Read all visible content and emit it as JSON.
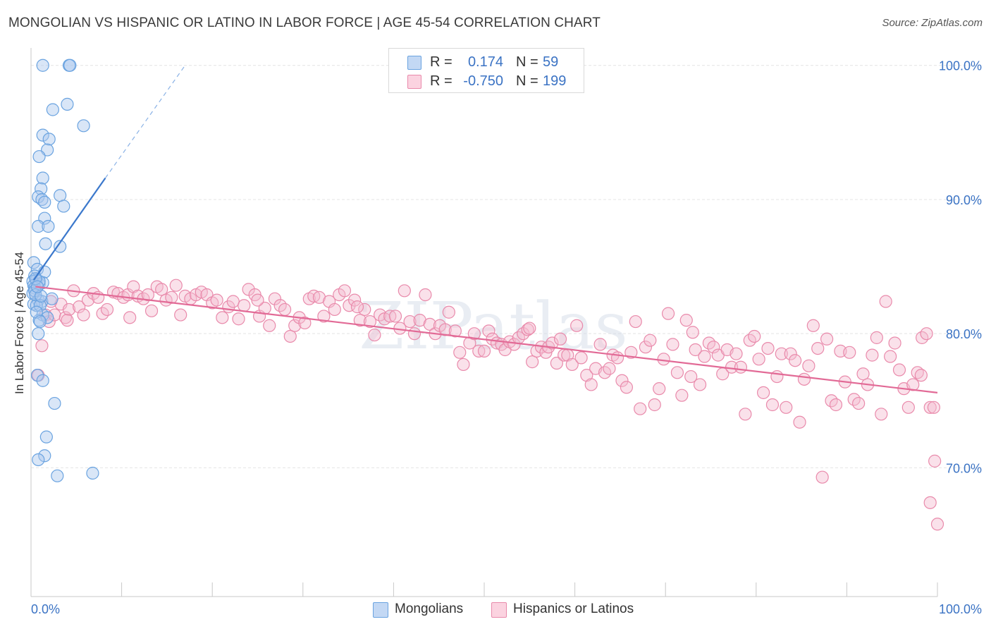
{
  "title": "MONGOLIAN VS HISPANIC OR LATINO IN LABOR FORCE | AGE 45-54 CORRELATION CHART",
  "source": "Source: ZipAtlas.com",
  "watermark": "ZIPatlas",
  "colors": {
    "blue": "#6aa3e0",
    "blue_fill": "#aac8ee",
    "blue_line": "#3b78cc",
    "pink": "#e98aab",
    "pink_fill": "#f5bcd0",
    "pink_line": "#e26a96",
    "tick": "#3b73c4",
    "grid": "#e4e4e4"
  },
  "legend_top": {
    "rows": [
      {
        "r_label": "R =",
        "r_value": "0.174",
        "n_label": "N =",
        "n_value": "59",
        "series": "blue"
      },
      {
        "r_label": "R =",
        "r_value": "-0.750",
        "n_label": "N =",
        "n_value": "199",
        "series": "pink"
      }
    ]
  },
  "legend_bottom": {
    "items": [
      {
        "label": "Mongolians",
        "series": "blue"
      },
      {
        "label": "Hispanics or Latinos",
        "series": "pink"
      }
    ]
  },
  "chart_data": {
    "type": "scatter",
    "ylabel": "In Labor Force | Age 45-54",
    "xlim": [
      0,
      100
    ],
    "ylim": [
      60.4,
      101.3
    ],
    "y_ticks": [
      {
        "value": 100,
        "label": "100.0%"
      },
      {
        "value": 90,
        "label": "90.0%"
      },
      {
        "value": 80,
        "label": "80.0%"
      },
      {
        "value": 70,
        "label": "70.0%"
      }
    ],
    "x_ticks": [
      {
        "value": 0,
        "label": "0.0%"
      },
      {
        "value": 100,
        "label": "100.0%"
      }
    ],
    "x_minor_ticks": [
      0,
      10,
      20,
      30,
      40,
      50,
      60,
      70,
      80,
      90,
      100
    ],
    "grid": true,
    "series": [
      {
        "name": "Mongolians",
        "color": "blue",
        "trend": {
          "x": [
            0.3,
            8.2
          ],
          "y": [
            84.0,
            91.6
          ],
          "dashed_to": [
            17.0,
            100.0
          ]
        },
        "points": [
          [
            1.3,
            100.0
          ],
          [
            4.2,
            100.0
          ],
          [
            4.3,
            100.0
          ],
          [
            4.0,
            97.1
          ],
          [
            2.4,
            96.7
          ],
          [
            5.8,
            95.5
          ],
          [
            1.3,
            94.8
          ],
          [
            2.0,
            94.5
          ],
          [
            1.8,
            93.7
          ],
          [
            0.9,
            93.2
          ],
          [
            1.3,
            91.6
          ],
          [
            1.1,
            90.8
          ],
          [
            0.8,
            90.2
          ],
          [
            3.2,
            90.3
          ],
          [
            1.2,
            90.0
          ],
          [
            1.5,
            89.8
          ],
          [
            3.6,
            89.5
          ],
          [
            1.5,
            88.6
          ],
          [
            0.8,
            88.0
          ],
          [
            1.9,
            88.0
          ],
          [
            1.6,
            86.7
          ],
          [
            3.2,
            86.5
          ],
          [
            0.3,
            85.3
          ],
          [
            0.7,
            84.8
          ],
          [
            1.5,
            84.6
          ],
          [
            0.4,
            84.3
          ],
          [
            0.6,
            84.0
          ],
          [
            0.2,
            83.9
          ],
          [
            0.3,
            83.6
          ],
          [
            0.9,
            83.7
          ],
          [
            1.3,
            83.8
          ],
          [
            0.4,
            83.4
          ],
          [
            0.2,
            83.0
          ],
          [
            0.8,
            82.5
          ],
          [
            1.2,
            82.4
          ],
          [
            2.3,
            82.6
          ],
          [
            0.3,
            82.2
          ],
          [
            0.6,
            82.1
          ],
          [
            1.0,
            82.1
          ],
          [
            1.3,
            81.4
          ],
          [
            1.8,
            81.2
          ],
          [
            0.9,
            81.0
          ],
          [
            0.8,
            80.0
          ],
          [
            0.7,
            76.9
          ],
          [
            1.3,
            76.5
          ],
          [
            2.6,
            74.8
          ],
          [
            1.7,
            72.3
          ],
          [
            1.5,
            70.9
          ],
          [
            0.8,
            70.6
          ],
          [
            2.9,
            69.4
          ],
          [
            6.8,
            69.6
          ],
          [
            0.4,
            83.2
          ],
          [
            0.5,
            82.9
          ],
          [
            0.6,
            81.6
          ],
          [
            0.9,
            83.9
          ],
          [
            1.1,
            82.8
          ],
          [
            0.5,
            84.1
          ],
          [
            1.0,
            80.9
          ],
          [
            0.7,
            83.5
          ]
        ]
      },
      {
        "name": "Hispanics or Latinos",
        "color": "pink",
        "trend": {
          "x": [
            0.5,
            100
          ],
          "y": [
            83.5,
            75.6
          ]
        },
        "points": [
          [
            1.2,
            79.1
          ],
          [
            0.8,
            76.9
          ],
          [
            1.6,
            81.4
          ],
          [
            2.0,
            80.9
          ],
          [
            2.6,
            81.4
          ],
          [
            3.3,
            82.2
          ],
          [
            3.8,
            81.2
          ],
          [
            4.2,
            81.8
          ],
          [
            4.7,
            83.2
          ],
          [
            5.3,
            82.0
          ],
          [
            5.8,
            81.4
          ],
          [
            6.3,
            82.5
          ],
          [
            6.9,
            83.0
          ],
          [
            7.4,
            82.7
          ],
          [
            7.9,
            81.5
          ],
          [
            8.4,
            81.8
          ],
          [
            9.1,
            83.1
          ],
          [
            9.6,
            83.0
          ],
          [
            10.2,
            82.7
          ],
          [
            10.7,
            82.9
          ],
          [
            11.3,
            83.5
          ],
          [
            11.8,
            82.8
          ],
          [
            12.4,
            82.6
          ],
          [
            12.9,
            82.9
          ],
          [
            13.3,
            81.7
          ],
          [
            13.9,
            83.5
          ],
          [
            14.4,
            83.3
          ],
          [
            14.9,
            82.5
          ],
          [
            15.5,
            82.7
          ],
          [
            16.0,
            83.6
          ],
          [
            16.5,
            81.4
          ],
          [
            17.0,
            82.8
          ],
          [
            17.6,
            82.6
          ],
          [
            18.2,
            82.9
          ],
          [
            18.8,
            83.1
          ],
          [
            19.4,
            82.9
          ],
          [
            20.0,
            82.3
          ],
          [
            20.5,
            82.5
          ],
          [
            21.1,
            81.2
          ],
          [
            21.8,
            82.0
          ],
          [
            22.3,
            82.4
          ],
          [
            22.9,
            81.1
          ],
          [
            23.5,
            82.1
          ],
          [
            24.0,
            83.3
          ],
          [
            24.7,
            82.9
          ],
          [
            25.2,
            81.3
          ],
          [
            25.8,
            81.9
          ],
          [
            26.3,
            80.6
          ],
          [
            26.9,
            82.6
          ],
          [
            27.5,
            82.1
          ],
          [
            28.0,
            81.8
          ],
          [
            28.6,
            79.8
          ],
          [
            29.1,
            80.6
          ],
          [
            29.6,
            81.2
          ],
          [
            30.2,
            80.8
          ],
          [
            30.7,
            82.6
          ],
          [
            31.2,
            82.8
          ],
          [
            31.8,
            82.7
          ],
          [
            32.3,
            81.3
          ],
          [
            32.9,
            82.4
          ],
          [
            33.5,
            81.8
          ],
          [
            34.0,
            82.9
          ],
          [
            34.6,
            83.2
          ],
          [
            35.1,
            82.1
          ],
          [
            35.7,
            82.5
          ],
          [
            36.3,
            81.0
          ],
          [
            36.8,
            81.8
          ],
          [
            37.4,
            80.9
          ],
          [
            37.9,
            79.9
          ],
          [
            38.5,
            81.4
          ],
          [
            39.0,
            81.1
          ],
          [
            39.6,
            81.3
          ],
          [
            40.2,
            81.3
          ],
          [
            40.7,
            80.4
          ],
          [
            41.2,
            83.2
          ],
          [
            41.8,
            80.9
          ],
          [
            42.3,
            80.0
          ],
          [
            42.9,
            81.0
          ],
          [
            43.5,
            82.9
          ],
          [
            44.0,
            80.7
          ],
          [
            44.6,
            80.0
          ],
          [
            45.1,
            80.6
          ],
          [
            45.7,
            80.3
          ],
          [
            46.1,
            81.6
          ],
          [
            46.8,
            80.2
          ],
          [
            47.3,
            78.6
          ],
          [
            47.7,
            77.7
          ],
          [
            48.4,
            79.3
          ],
          [
            48.9,
            80.0
          ],
          [
            49.4,
            78.7
          ],
          [
            50.0,
            78.7
          ],
          [
            50.5,
            80.2
          ],
          [
            50.9,
            79.6
          ],
          [
            51.4,
            79.3
          ],
          [
            51.9,
            79.2
          ],
          [
            52.3,
            78.8
          ],
          [
            52.8,
            79.4
          ],
          [
            53.3,
            79.2
          ],
          [
            53.8,
            79.7
          ],
          [
            54.3,
            80.0
          ],
          [
            54.8,
            80.3
          ],
          [
            55.3,
            77.9
          ],
          [
            55.8,
            78.7
          ],
          [
            56.3,
            79.0
          ],
          [
            56.8,
            78.6
          ],
          [
            57.1,
            79.0
          ],
          [
            57.5,
            79.3
          ],
          [
            58.0,
            77.8
          ],
          [
            58.4,
            79.6
          ],
          [
            58.8,
            78.4
          ],
          [
            59.2,
            78.4
          ],
          [
            59.7,
            77.7
          ],
          [
            60.2,
            80.6
          ],
          [
            60.7,
            78.2
          ],
          [
            61.3,
            76.9
          ],
          [
            61.8,
            76.2
          ],
          [
            62.3,
            77.4
          ],
          [
            62.8,
            79.2
          ],
          [
            63.3,
            77.1
          ],
          [
            63.8,
            77.4
          ],
          [
            64.2,
            78.4
          ],
          [
            64.7,
            78.2
          ],
          [
            65.2,
            76.5
          ],
          [
            65.7,
            76.0
          ],
          [
            66.2,
            78.6
          ],
          [
            66.7,
            80.9
          ],
          [
            67.2,
            74.4
          ],
          [
            67.8,
            79.0
          ],
          [
            68.3,
            79.5
          ],
          [
            68.8,
            74.7
          ],
          [
            69.3,
            75.9
          ],
          [
            69.8,
            78.1
          ],
          [
            70.3,
            81.5
          ],
          [
            70.8,
            79.2
          ],
          [
            71.3,
            77.1
          ],
          [
            71.8,
            75.4
          ],
          [
            72.3,
            81.0
          ],
          [
            72.8,
            76.8
          ],
          [
            73.3,
            78.8
          ],
          [
            73.8,
            76.2
          ],
          [
            74.3,
            78.3
          ],
          [
            74.8,
            79.3
          ],
          [
            75.3,
            79.0
          ],
          [
            75.8,
            78.4
          ],
          [
            76.3,
            77.0
          ],
          [
            76.8,
            78.8
          ],
          [
            77.3,
            77.5
          ],
          [
            77.8,
            78.5
          ],
          [
            78.3,
            77.5
          ],
          [
            78.8,
            74.0
          ],
          [
            79.3,
            79.5
          ],
          [
            79.8,
            79.8
          ],
          [
            80.3,
            78.1
          ],
          [
            80.8,
            75.6
          ],
          [
            81.3,
            78.9
          ],
          [
            81.8,
            74.7
          ],
          [
            82.3,
            76.8
          ],
          [
            82.8,
            78.5
          ],
          [
            83.3,
            74.5
          ],
          [
            83.8,
            78.5
          ],
          [
            84.3,
            78.0
          ],
          [
            84.8,
            73.4
          ],
          [
            85.3,
            76.6
          ],
          [
            85.8,
            77.6
          ],
          [
            86.3,
            80.6
          ],
          [
            86.8,
            78.9
          ],
          [
            87.3,
            69.3
          ],
          [
            87.8,
            79.6
          ],
          [
            88.3,
            75.0
          ],
          [
            88.8,
            74.7
          ],
          [
            89.3,
            78.7
          ],
          [
            89.8,
            76.4
          ],
          [
            90.3,
            78.6
          ],
          [
            90.8,
            75.1
          ],
          [
            91.3,
            74.8
          ],
          [
            91.8,
            77.0
          ],
          [
            92.3,
            76.2
          ],
          [
            92.8,
            78.4
          ],
          [
            93.3,
            79.7
          ],
          [
            93.8,
            74.0
          ],
          [
            94.3,
            82.4
          ],
          [
            94.8,
            78.3
          ],
          [
            95.3,
            79.3
          ],
          [
            95.8,
            77.3
          ],
          [
            96.3,
            75.9
          ],
          [
            96.8,
            74.5
          ],
          [
            97.3,
            76.2
          ],
          [
            97.8,
            77.1
          ],
          [
            98.3,
            79.7
          ],
          [
            98.8,
            80.0
          ],
          [
            99.2,
            74.5
          ],
          [
            99.6,
            74.5
          ],
          [
            98.2,
            76.9
          ],
          [
            99.7,
            70.5
          ],
          [
            99.2,
            67.4
          ],
          [
            100.0,
            65.8
          ],
          [
            2.2,
            82.4
          ],
          [
            4.0,
            81.0
          ],
          [
            10.9,
            81.2
          ],
          [
            25.0,
            82.5
          ],
          [
            36.0,
            82.0
          ],
          [
            55.0,
            80.4
          ],
          [
            73.0,
            80.1
          ]
        ]
      }
    ]
  }
}
